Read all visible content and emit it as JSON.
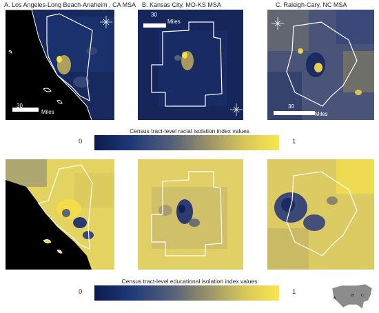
{
  "panels": [
    {
      "title": "A. Los Angeles-Long Beach-Anaheim , CA MSA",
      "scale_value": "30",
      "scale_unit": "Miles"
    },
    {
      "title": "B. Kansas City, MO-KS MSA",
      "scale_value": "30",
      "scale_unit": "Miles"
    },
    {
      "title": "C. Raleigh-Cary, NC MSA",
      "scale_value": "30",
      "scale_unit": "Miles"
    }
  ],
  "legends": {
    "racial": {
      "title": "Census tract-level racial isolation index values",
      "min": "0",
      "max": "1"
    },
    "educational": {
      "title": "Census tract-level educational isolation index values",
      "min": "0",
      "max": "1"
    }
  },
  "inset": {
    "labels": [
      "A",
      "B",
      "C"
    ]
  },
  "colors": {
    "low": "#0b1a4f",
    "mid": "#6d6f7a",
    "high": "#fbe74d",
    "ocean": "#000000",
    "boundary": "#ffffff"
  },
  "icons": {
    "compass": "compass-rose-icon"
  }
}
